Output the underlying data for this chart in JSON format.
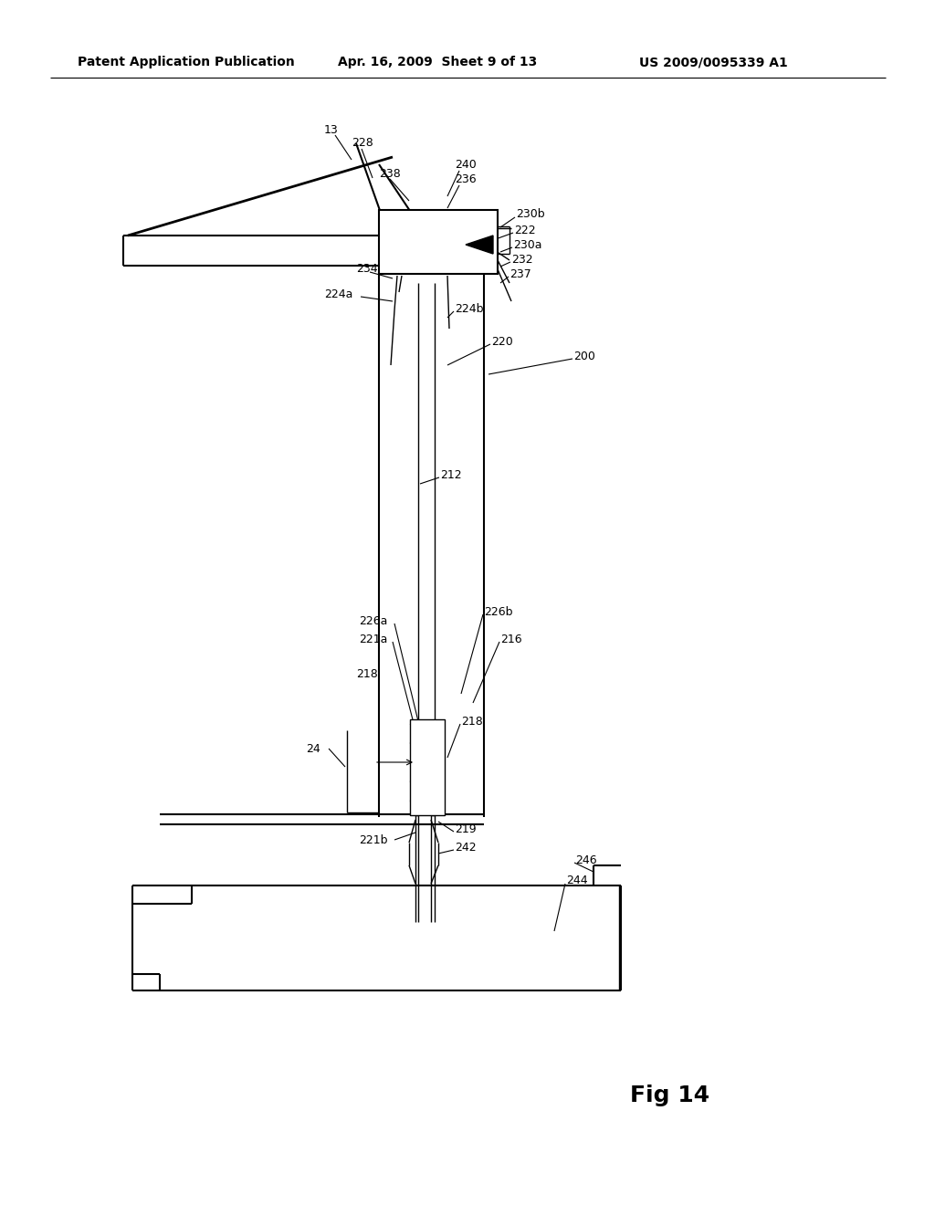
{
  "bg_color": "#ffffff",
  "header_left": "Patent Application Publication",
  "header_mid": "Apr. 16, 2009  Sheet 9 of 13",
  "header_right": "US 2009/0095339 A1",
  "fig_label": "Fig 14"
}
